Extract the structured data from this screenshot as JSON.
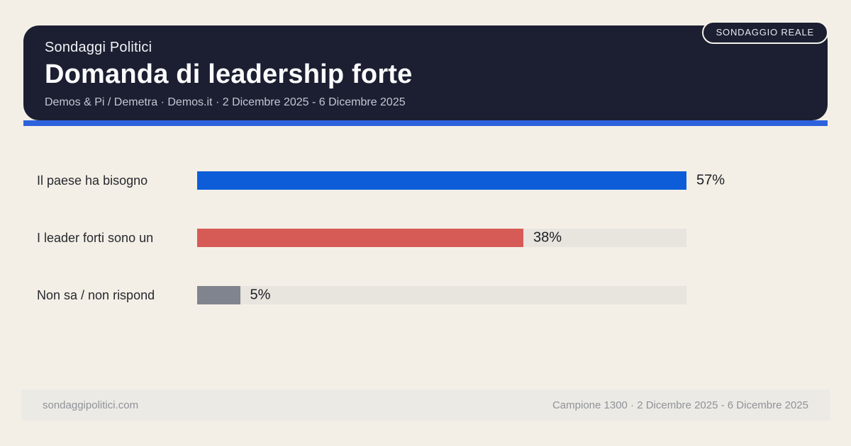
{
  "badge": {
    "label": "SONDAGGIO REALE"
  },
  "header": {
    "kicker": "Sondaggi Politici",
    "title": "Domanda di leadership forte",
    "subtitle": "Demos & Pi / Demetra · Demos.it · 2 Dicembre 2025 - 6 Dicembre 2025"
  },
  "chart_data": {
    "type": "bar",
    "orientation": "horizontal",
    "title": "Domanda di leadership forte",
    "categories": [
      "Il paese ha bisogno",
      "I leader forti sono un",
      "Non sa / non rispond"
    ],
    "values": [
      57,
      38,
      5
    ],
    "unit": "%",
    "value_labels": [
      "57%",
      "38%",
      "5%"
    ],
    "bar_colors": [
      "#0d5dd8",
      "#d65a56",
      "#80848e"
    ],
    "track_color": "#e8e4de",
    "scale_max": 57,
    "xlim": [
      0,
      57
    ],
    "grid": false,
    "legend": false,
    "axes_visible": false
  },
  "footer": {
    "left": "sondaggipolitici.com",
    "right": "Campione 1300 · 2 Dicembre 2025 - 6 Dicembre 2025"
  },
  "colors": {
    "background": "#f4efe6",
    "card_background": "#1b1f31",
    "accent_stripe": "#2d62dd",
    "bar_blue": "#0d5dd8",
    "bar_red": "#d65a56",
    "bar_gray": "#80848e",
    "track": "#e8e4de"
  }
}
